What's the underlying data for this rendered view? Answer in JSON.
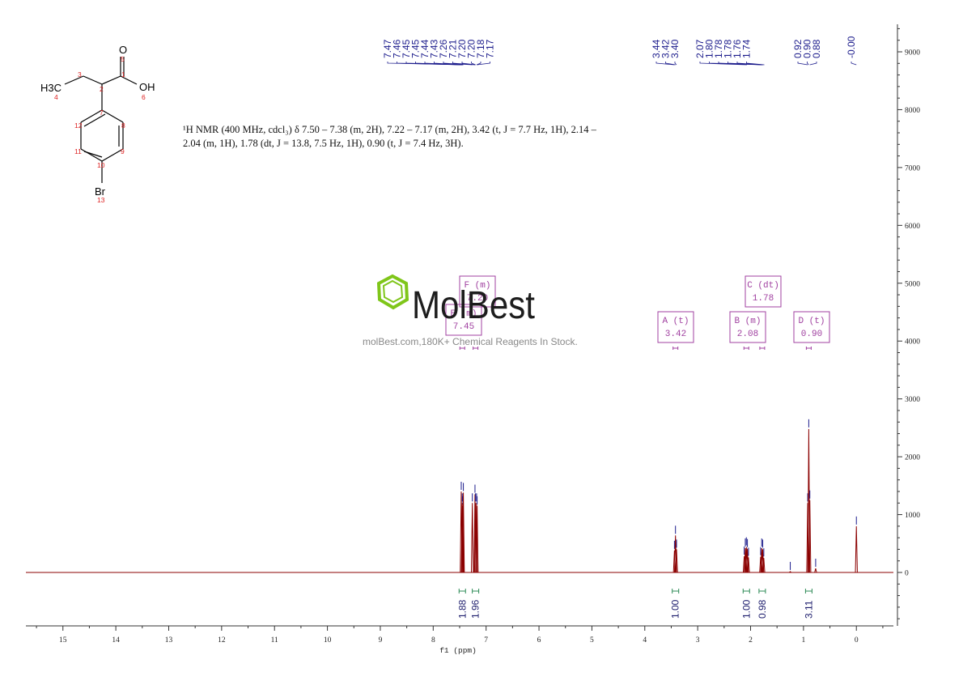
{
  "chart_data": {
    "type": "line",
    "title": "",
    "xlabel": "f1 (ppm)",
    "ylabel": "",
    "xlim": [
      15.7,
      -0.7
    ],
    "ylim": [
      -900,
      9600
    ],
    "x_ticks": [
      "15",
      "14",
      "13",
      "12",
      "11",
      "10",
      "9",
      "8",
      "7",
      "6",
      "5",
      "4",
      "3",
      "2",
      "1",
      "0"
    ],
    "y_ticks": [
      "0",
      "1000",
      "2000",
      "3000",
      "4000",
      "5000",
      "6000",
      "7000",
      "8000",
      "9000"
    ],
    "grid": false,
    "spectrum_color": "#8b0000",
    "label_color": "#1c1c8c",
    "multiplet_color": "#a040a0",
    "integral_color": "#2e8b57",
    "peaks": [
      {
        "ppm": 7.47,
        "height": 1400
      },
      {
        "ppm": 7.45,
        "height": 1200
      },
      {
        "ppm": 7.44,
        "height": 1150
      },
      {
        "ppm": 7.43,
        "height": 1380
      },
      {
        "ppm": 7.26,
        "height": 1200
      },
      {
        "ppm": 7.21,
        "height": 1350
      },
      {
        "ppm": 7.2,
        "height": 1200
      },
      {
        "ppm": 7.18,
        "height": 1200
      },
      {
        "ppm": 7.17,
        "height": 1150
      },
      {
        "ppm": 3.44,
        "height": 380
      },
      {
        "ppm": 3.42,
        "height": 640
      },
      {
        "ppm": 3.4,
        "height": 400
      },
      {
        "ppm": 2.12,
        "height": 280
      },
      {
        "ppm": 2.1,
        "height": 420
      },
      {
        "ppm": 2.08,
        "height": 440
      },
      {
        "ppm": 2.06,
        "height": 410
      },
      {
        "ppm": 2.04,
        "height": 260
      },
      {
        "ppm": 1.81,
        "height": 270
      },
      {
        "ppm": 1.79,
        "height": 420
      },
      {
        "ppm": 1.77,
        "height": 400
      },
      {
        "ppm": 1.75,
        "height": 250
      },
      {
        "ppm": 0.92,
        "height": 1200
      },
      {
        "ppm": 0.9,
        "height": 2480
      },
      {
        "ppm": 0.88,
        "height": 1250
      },
      {
        "ppm": 0.77,
        "height": 70
      },
      {
        "ppm": 1.25,
        "height": 15
      },
      {
        "ppm": 0.0,
        "height": 800
      }
    ],
    "peak_labels": [
      {
        "text": "7.47",
        "ppm": 7.47
      },
      {
        "text": "7.46",
        "ppm": 7.46
      },
      {
        "text": "7.45",
        "ppm": 7.45
      },
      {
        "text": "7.45",
        "ppm": 7.45
      },
      {
        "text": "7.44",
        "ppm": 7.44
      },
      {
        "text": "7.43",
        "ppm": 7.43
      },
      {
        "text": "7.26",
        "ppm": 7.26
      },
      {
        "text": "7.21",
        "ppm": 7.21
      },
      {
        "text": "7.20",
        "ppm": 7.2
      },
      {
        "text": "7.20",
        "ppm": 7.2
      },
      {
        "text": "7.18",
        "ppm": 7.18
      },
      {
        "text": "7.17",
        "ppm": 7.17
      },
      {
        "text": "3.44",
        "ppm": 3.44
      },
      {
        "text": "3.42",
        "ppm": 3.42
      },
      {
        "text": "3.40",
        "ppm": 3.4
      },
      {
        "text": "2.07",
        "ppm": 2.07
      },
      {
        "text": "1.80",
        "ppm": 1.8
      },
      {
        "text": "1.78",
        "ppm": 1.78
      },
      {
        "text": "1.78",
        "ppm": 1.78
      },
      {
        "text": "1.76",
        "ppm": 1.76
      },
      {
        "text": "1.74",
        "ppm": 1.74
      },
      {
        "text": "0.92",
        "ppm": 0.92
      },
      {
        "text": "0.90",
        "ppm": 0.9
      },
      {
        "text": "0.88",
        "ppm": 0.88
      },
      {
        "text": "-0.00",
        "ppm": 0.0
      }
    ],
    "multiplets": [
      {
        "name": "E (m)",
        "shift": "7.45",
        "ppm": 7.45
      },
      {
        "name": "F (m)",
        "shift": "7.20",
        "ppm": 7.2
      },
      {
        "name": "A (t)",
        "shift": "3.42",
        "ppm": 3.42
      },
      {
        "name": "B (m)",
        "shift": "2.08",
        "ppm": 2.08
      },
      {
        "name": "C (dt)",
        "shift": "1.78",
        "ppm": 1.78
      },
      {
        "name": "D (t)",
        "shift": "0.90",
        "ppm": 0.9
      }
    ],
    "integrals": [
      {
        "value": "1.88",
        "ppm": 7.45
      },
      {
        "value": "1.96",
        "ppm": 7.2
      },
      {
        "value": "1.00",
        "ppm": 3.42
      },
      {
        "value": "1.00",
        "ppm": 2.08
      },
      {
        "value": "0.98",
        "ppm": 1.78
      },
      {
        "value": "3.11",
        "ppm": 0.9
      }
    ]
  },
  "nmr_description": {
    "line1": "¹H NMR (400 MHz, cdcl₃) δ 7.50 – 7.38 (m, 2H), 7.22 – 7.17 (m, 2H), 3.42 (t, J = 7.7 Hz, 1H), 2.14 –",
    "line2": "2.04 (m, 1H), 1.78 (dt, J = 13.8, 7.5 Hz, 1H), 0.90 (t, J = 7.4 Hz, 3H)."
  },
  "structure": {
    "atoms": [
      {
        "id": "O_top",
        "text": "O"
      },
      {
        "id": "OH",
        "text": "OH"
      },
      {
        "id": "CH3",
        "text": "H3C"
      },
      {
        "id": "Br",
        "text": "Br"
      }
    ],
    "numbers": [
      "1",
      "2",
      "3",
      "4",
      "5",
      "6",
      "7",
      "8",
      "9",
      "10",
      "11",
      "12",
      "13"
    ]
  },
  "watermark": {
    "brand": "MolBest",
    "tagline": "molBest.com,180K+ Chemical Reagents In Stock."
  }
}
